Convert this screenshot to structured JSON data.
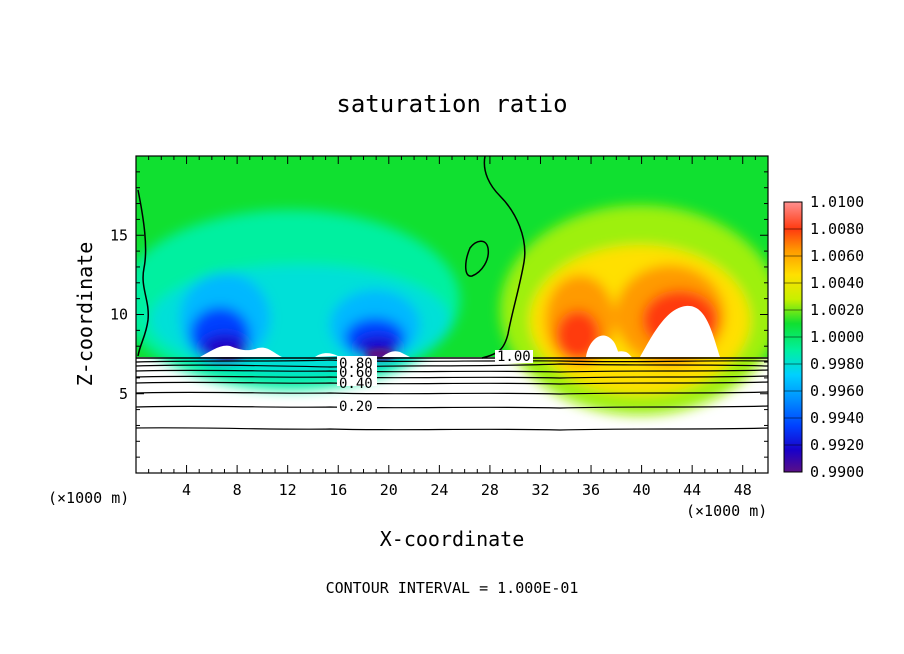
{
  "chart_data": {
    "type": "heatmap",
    "title": "saturation ratio",
    "xlabel": "X-coordinate",
    "ylabel": "Z-coordinate",
    "x_unit": "(×1000 m)",
    "z_unit": "(×1000 m)",
    "xlim": [
      0,
      50
    ],
    "ylim": [
      0,
      20
    ],
    "x_ticks": [
      4,
      8,
      12,
      16,
      20,
      24,
      28,
      32,
      36,
      40,
      44,
      48
    ],
    "y_ticks": [
      5,
      10,
      15
    ],
    "colorbar": {
      "min": 0.99,
      "max": 1.01,
      "labels": [
        "1.0100",
        "1.0080",
        "1.0060",
        "1.0040",
        "1.0020",
        "1.0000",
        "0.9980",
        "0.9960",
        "0.9940",
        "0.9920",
        "0.9900"
      ],
      "colors": [
        "#5a0f86",
        "#1a00c8",
        "#0040ff",
        "#0090ff",
        "#00d0ff",
        "#00f0a0",
        "#10e030",
        "#c8f000",
        "#ffe000",
        "#ff9a00",
        "#ff3a10",
        "#ff5050",
        "#ff9090"
      ]
    },
    "contour_interval": "CONTOUR INTERVAL = 1.000E-01",
    "contour_labels": [
      "0.80",
      "0.60",
      "0.40",
      "0.20",
      "1.00"
    ],
    "contours": [
      {
        "level": 0.2,
        "z": 4.2
      },
      {
        "level": 0.4,
        "z": 5.2
      },
      {
        "level": 0.6,
        "z": 6.0
      },
      {
        "level": 0.8,
        "z": 6.6
      },
      {
        "level": 0.1,
        "z": 2.8
      }
    ]
  }
}
